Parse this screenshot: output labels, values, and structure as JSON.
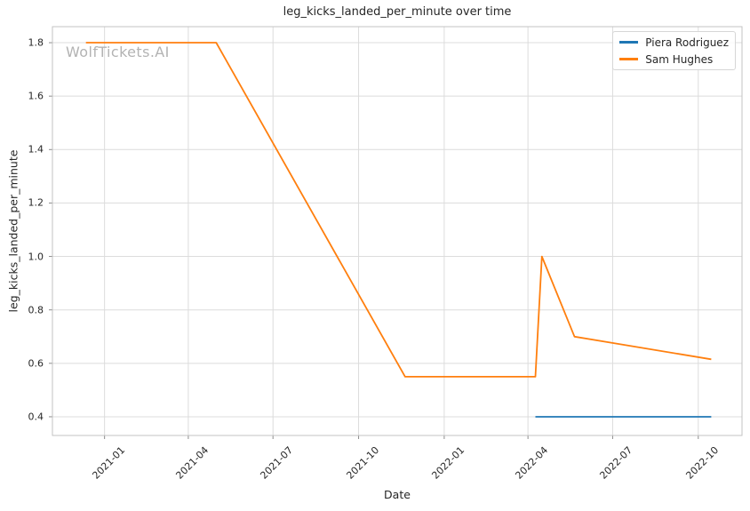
{
  "watermark": "WolfTickets.AI",
  "chart_data": {
    "type": "line",
    "title": "leg_kicks_landed_per_minute over time",
    "xlabel": "Date",
    "ylabel": "leg_kicks_landed_per_minute",
    "legend_position": "upper right",
    "grid": true,
    "grid_color": "#dcdcdc",
    "spine_color": "#c3c3c3",
    "tick_color": "#8c8c8c",
    "text_color": "#262626",
    "xlim": [
      "2020-11-06",
      "2022-11-17"
    ],
    "ylim": [
      0.33,
      1.86
    ],
    "xticks": [
      "2021-01",
      "2021-04",
      "2021-07",
      "2021-10",
      "2022-01",
      "2022-04",
      "2022-07",
      "2022-10"
    ],
    "yticks": [
      "0.4",
      "0.6",
      "0.8",
      "1.0",
      "1.2",
      "1.4",
      "1.6",
      "1.8"
    ],
    "series": [
      {
        "name": "Piera Rodriguez",
        "color": "#1f77b4",
        "points": [
          [
            "2022-04-09",
            0.4
          ],
          [
            "2022-10-15",
            0.4
          ]
        ]
      },
      {
        "name": "Sam Hughes",
        "color": "#ff7f0e",
        "points": [
          [
            "2020-12-12",
            1.8
          ],
          [
            "2021-05-01",
            1.8
          ],
          [
            "2021-11-20",
            0.55
          ],
          [
            "2022-04-09",
            0.55
          ],
          [
            "2022-04-16",
            1.0
          ],
          [
            "2022-05-21",
            0.7
          ],
          [
            "2022-10-15",
            0.615
          ]
        ]
      }
    ]
  }
}
